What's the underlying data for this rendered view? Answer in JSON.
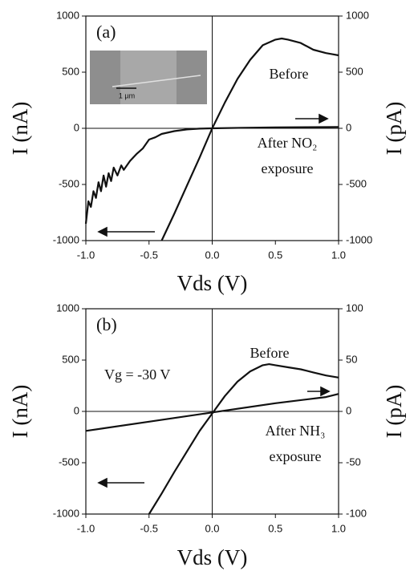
{
  "chart_data": [
    {
      "type": "line",
      "label": "(a)",
      "xlabel": "Vds (V)",
      "ylabel": "I (nA)",
      "y2label": "I (pA)",
      "inset_scale": "1 µm",
      "xlim": [
        -1,
        1
      ],
      "xticks": [
        {
          "value": -1,
          "label": "-1.0"
        },
        {
          "value": -0.5,
          "label": "-0.5"
        },
        {
          "value": 0,
          "label": "0.0"
        },
        {
          "value": 0.5,
          "label": "0.5"
        },
        {
          "value": 1,
          "label": "1.0"
        }
      ],
      "ylim": [
        -1000,
        1000
      ],
      "yticks": [
        -1000,
        -500,
        0,
        500,
        1000
      ],
      "y2lim": [
        -1000,
        1000
      ],
      "y2ticks": [
        -1000,
        -500,
        0,
        500,
        1000
      ],
      "series": [
        {
          "name": "Before",
          "color": "#111111",
          "x": [
            -0.4,
            -0.3,
            -0.2,
            -0.1,
            0,
            0.1,
            0.2,
            0.3,
            0.4,
            0.5,
            0.55,
            0.6,
            0.7,
            0.8,
            0.9,
            0.95,
            1.0
          ],
          "values": [
            -1000,
            -760,
            -510,
            -260,
            0,
            230,
            440,
            610,
            740,
            790,
            800,
            790,
            760,
            700,
            670,
            660,
            650
          ]
        },
        {
          "name": "After NO₂ exposure",
          "color": "#111111",
          "axis": "y2",
          "x": [
            -1.0,
            -0.98,
            -0.96,
            -0.94,
            -0.92,
            -0.9,
            -0.88,
            -0.86,
            -0.84,
            -0.82,
            -0.8,
            -0.78,
            -0.75,
            -0.72,
            -0.7,
            -0.65,
            -0.6,
            -0.55,
            -0.5,
            -0.45,
            -0.4,
            -0.3,
            -0.2,
            -0.1,
            0,
            0.25,
            0.5,
            0.75,
            1.0
          ],
          "values": [
            -850,
            -650,
            -700,
            -560,
            -620,
            -480,
            -560,
            -420,
            -520,
            -400,
            -470,
            -350,
            -420,
            -330,
            -370,
            -290,
            -230,
            -180,
            -100,
            -80,
            -50,
            -25,
            -10,
            -3,
            0,
            5,
            8,
            10,
            12
          ]
        }
      ]
    },
    {
      "type": "line",
      "label": "(b)",
      "xlabel": "Vds (V)",
      "ylabel": "I (nA)",
      "y2label": "I (pA)",
      "annotations": [
        "Vg = -30 V"
      ],
      "xlim": [
        -1,
        1
      ],
      "xticks": [
        {
          "value": -1,
          "label": "-1.0"
        },
        {
          "value": -0.5,
          "label": "-0.5"
        },
        {
          "value": 0,
          "label": "0.0"
        },
        {
          "value": 0.5,
          "label": "0.5"
        },
        {
          "value": 1,
          "label": "1.0"
        }
      ],
      "ylim": [
        -1000,
        1000
      ],
      "yticks": [
        -1000,
        -500,
        0,
        500,
        1000
      ],
      "y2lim": [
        -100,
        100
      ],
      "y2ticks": [
        -100,
        -50,
        0,
        50,
        100
      ],
      "series": [
        {
          "name": "Before",
          "color": "#111111",
          "x": [
            -0.5,
            -0.4,
            -0.3,
            -0.2,
            -0.1,
            0,
            0.1,
            0.2,
            0.3,
            0.4,
            0.45,
            0.5,
            0.6,
            0.7,
            0.8,
            0.9,
            1.0
          ],
          "values": [
            -1000,
            -800,
            -590,
            -390,
            -190,
            -20,
            150,
            290,
            390,
            450,
            460,
            450,
            430,
            410,
            380,
            350,
            330
          ]
        },
        {
          "name": "After NH₃ exposure",
          "color": "#111111",
          "axis": "y2",
          "x": [
            -1.0,
            -0.5,
            0,
            0.5,
            0.9,
            1.0
          ],
          "values": [
            -19,
            -10,
            -1,
            8,
            14,
            17
          ]
        }
      ]
    }
  ]
}
